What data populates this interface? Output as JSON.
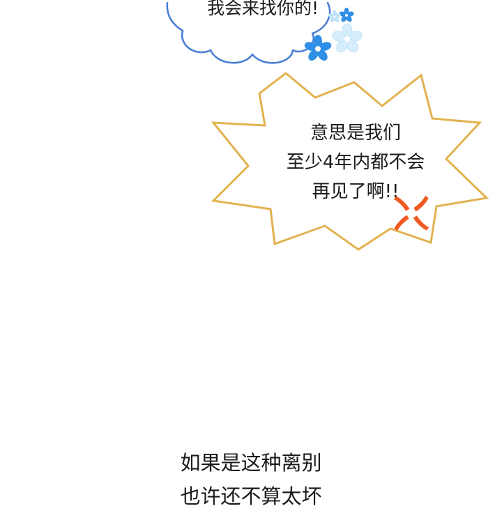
{
  "cloud_bubble": {
    "text": "我会来找你的!"
  },
  "burst_bubble": {
    "lines": [
      "意思是我们",
      "至少4年内都不会",
      "再见了啊!!"
    ]
  },
  "caption": {
    "lines": [
      "如果是这种离别",
      "也许还不算太坏"
    ]
  },
  "colors": {
    "cloud_outline": "#4a7fd4",
    "flower_blue": "#2f8ee6",
    "flower_light": "#bfe3f8",
    "burst_outline": "#e2b24f",
    "anger_mark": "#f05a22"
  },
  "icons": {
    "flowers": "flower-icon",
    "anger": "anger-mark-icon"
  }
}
